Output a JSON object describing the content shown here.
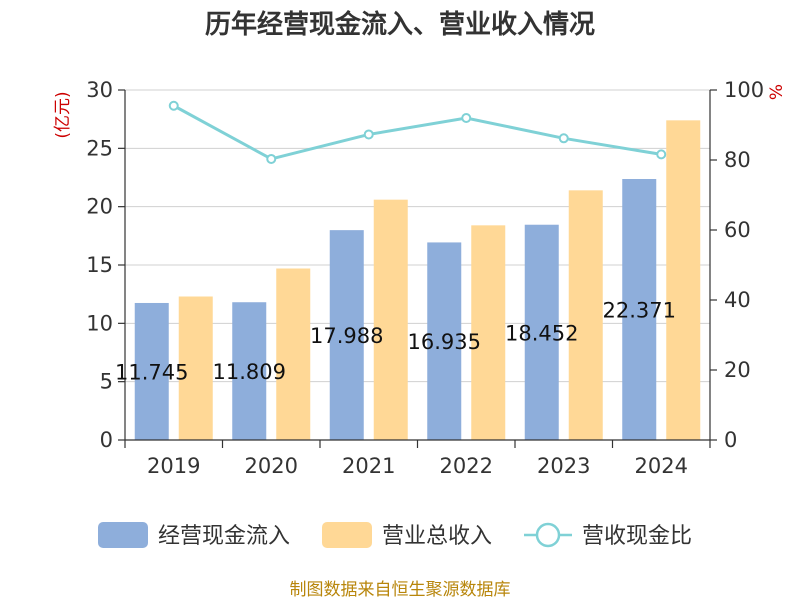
{
  "title": "历年经营现金流入、营业收入情况",
  "footer": "制图数据来自恒生聚源数据库",
  "chart_data": {
    "type": "bar",
    "title": "历年经营现金流入、营业收入情况",
    "categories": [
      "2019",
      "2020",
      "2021",
      "2022",
      "2023",
      "2024"
    ],
    "left_axis": {
      "label": "(亿元)",
      "range": [
        0,
        30
      ],
      "ticks": [
        "0",
        "5",
        "10",
        "15",
        "20",
        "25",
        "30"
      ]
    },
    "right_axis": {
      "label": "%",
      "range": [
        0,
        100
      ],
      "ticks": [
        "0",
        "20",
        "40",
        "60",
        "80",
        "100"
      ]
    },
    "series": [
      {
        "name": "经营现金流入",
        "type": "bar",
        "axis": "left",
        "color": "#8eaedb",
        "values": [
          11.745,
          11.809,
          17.988,
          16.935,
          18.452,
          22.371
        ],
        "labels": [
          "11.745",
          "11.809",
          "17.988",
          "16.935",
          "18.452",
          "22.371"
        ]
      },
      {
        "name": "营业总收入",
        "type": "bar",
        "axis": "left",
        "color": "#ffd896",
        "values": [
          12.3,
          14.7,
          20.6,
          18.4,
          21.4,
          27.4
        ]
      },
      {
        "name": "营收现金比",
        "type": "line",
        "axis": "right",
        "color": "#7fd1d6",
        "values": [
          95.5,
          80.3,
          87.3,
          92.0,
          86.2,
          81.6
        ]
      }
    ],
    "grid": true,
    "legend": "bottom",
    "colors": {
      "title": "#333333",
      "axis_label": "#cc0000",
      "tick": "#333333",
      "grid": "#d0d0d0",
      "axis": "#333333",
      "footer": "#b8860b"
    }
  }
}
